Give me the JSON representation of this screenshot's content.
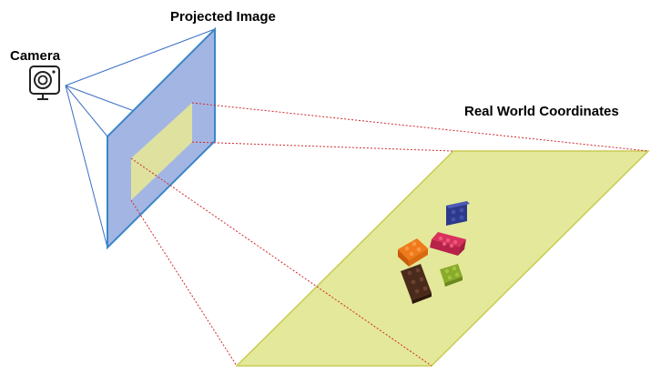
{
  "labels": {
    "camera": "Camera",
    "projected_image": "Projected Image",
    "real_world": "Real World Coordinates"
  },
  "icons": {
    "camera": "camera-icon"
  },
  "colors": {
    "image_plane_fill": "#a3b6e3",
    "image_plane_stroke": "#3a86c8",
    "projection_fill": "#e2e59a",
    "ground_plane_fill": "#e4e89a",
    "ground_plane_stroke": "#c8cc50",
    "ray_color": "#d0282e",
    "frustum_color": "#3a6fc4"
  },
  "bricks": [
    {
      "name": "blue-brick",
      "color": "#2d3a8c"
    },
    {
      "name": "orange-brick",
      "color": "#f07a1a"
    },
    {
      "name": "red-brick",
      "color": "#d8325c"
    },
    {
      "name": "brown-brick",
      "color": "#4a2a1a"
    },
    {
      "name": "green-brick",
      "color": "#8aab2a"
    }
  ]
}
